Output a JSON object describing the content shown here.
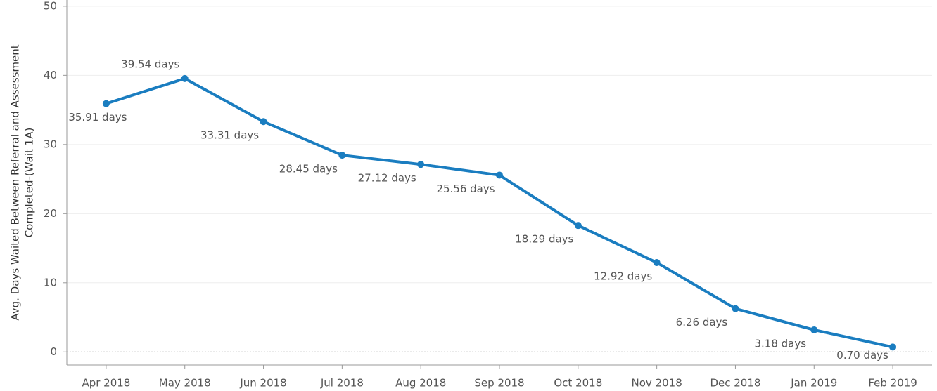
{
  "chart_data": {
    "type": "line",
    "ylabel": [
      "Avg. Days Waited Between Referral and Assessment",
      "Completed-(Wait 1A)"
    ],
    "categories": [
      "Apr 2018",
      "May 2018",
      "Jun 2018",
      "Jul 2018",
      "Aug 2018",
      "Sep 2018",
      "Oct 2018",
      "Nov 2018",
      "Dec 2018",
      "Jan 2019",
      "Feb 2019"
    ],
    "series": [
      {
        "name": "Avg. Days Waited",
        "color": "#1a7dc0",
        "values": [
          35.91,
          39.54,
          33.31,
          28.45,
          27.12,
          25.56,
          18.29,
          12.92,
          6.26,
          3.18,
          0.7
        ],
        "value_labels": [
          "35.91 days",
          "39.54 days",
          "33.31 days",
          "28.45 days",
          "27.12 days",
          "25.56 days",
          "18.29 days",
          "12.92 days",
          "6.26 days",
          "3.18 days",
          "0.70 days"
        ]
      }
    ],
    "ylim": [
      -1.9,
      50.9
    ],
    "yticks": [
      0,
      10,
      20,
      30,
      40,
      50
    ],
    "grid": true
  }
}
